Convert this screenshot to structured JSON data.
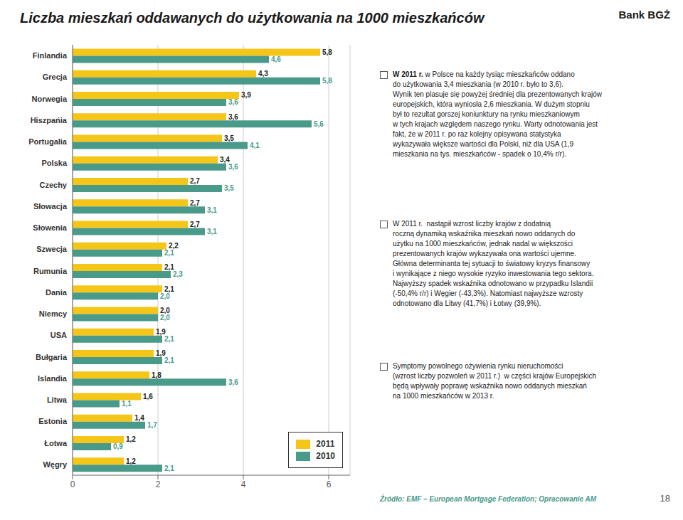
{
  "chart_data": {
    "type": "bar",
    "orientation": "horizontal",
    "title": "Liczba mieszkań oddawanych do użytkowania na 1000 mieszkańców",
    "categories": [
      "Finlandia",
      "Grecja",
      "Norwegia",
      "Hiszpańia",
      "Portugalia",
      "Polska",
      "Czechy",
      "Słowacja",
      "Słowenia",
      "Szwecja",
      "Rumunia",
      "Dania",
      "Niemcy",
      "USA",
      "Bułgaria",
      "Islandia",
      "Litwa",
      "Estonia",
      "Łotwa",
      "Węgry"
    ],
    "series": [
      {
        "name": "2011",
        "color": "#F5C518",
        "values": [
          5.8,
          4.3,
          3.9,
          3.6,
          3.5,
          3.4,
          2.7,
          2.7,
          2.7,
          2.2,
          2.1,
          2.1,
          2.0,
          1.9,
          1.9,
          1.8,
          1.6,
          1.4,
          1.2,
          1.2
        ],
        "value_labels": [
          "5,8",
          "4,3",
          "3,9",
          "3,6",
          "3,5",
          "3,4",
          "2,7",
          "2,7",
          "2,7",
          "2,2",
          "2,1",
          "2,1",
          "2,0",
          "1,9",
          "1,9",
          "1,8",
          "1,6",
          "1,4",
          "1,2",
          "1,2"
        ]
      },
      {
        "name": "2010",
        "color": "#4A9A8A",
        "values": [
          4.6,
          5.8,
          3.6,
          5.6,
          4.1,
          3.6,
          3.5,
          3.1,
          3.1,
          2.1,
          2.3,
          2.0,
          2.0,
          2.1,
          2.1,
          3.6,
          1.1,
          1.7,
          0.9,
          2.1
        ],
        "value_labels": [
          "4,6",
          "5,8",
          "3,6",
          "5,6",
          "4,1",
          "3,6",
          "3,5",
          "3,1",
          "3,1",
          "2,1",
          "2,3",
          "2,0",
          "2,0",
          "2,1",
          "2,1",
          "3,6",
          "1,1",
          "1,7",
          "0,9",
          "2,1"
        ]
      }
    ],
    "xlim": [
      0,
      6.5
    ],
    "xticks": [
      0,
      2,
      4,
      6
    ],
    "grid": true,
    "legend": "lower right",
    "data_labels": true,
    "annotations": [
      "W 2011 r.",
      " w Polsce na każdy tysiąc mieszkańców oddano\ndo użytkowania 3,4 mieszkania (w 2010 r. było to 3,6).\nWynik ten plasuje się powyżej średniej dla prezentowanych krajów\neuropejskich, która wyniosła 2,6 mieszkania. W dużym stopniu\nbył to rezultat gorszej koniunktury na rynku mieszkaniowym\nw tych krajach względem naszego rynku. Warty odnotowania jest\nfakt, że w 2011 r. po raz kolejny opisywana statystyka\nwykazywała większe wartości dla Polski, niż dla USA (1,9\nmieszkania na tys. mieszkańców - spadek o 10,4% r/r).",
      "W 2011 r.  nastąpił wzrost liczby krajów z dodatnią\nroczną dynamiką wskaźnika mieszkań nowo oddanych do\nużytku na 1000 mieszkańców, jednak nadal w większości\nprezentowanych krajów wykazywała ona wartości ujemne.\nGłówna determinanta tej sytuacji to światowy kryzys finansowy\ni wynikające z niego wysokie ryzyko inwestowania tego sektora.\nNajwyższy spadek wskaźnika odnotowano w przypadku Islandii\n(-50,4% r/r) i Węgier (-43,3%). Natomiast najwyższe wzrosty\nodnotowano dla Litwy (41,7%) i Łotwy (39,9%).",
      "Symptomy powolnego ożywienia rynku nieruchomości\n(wzrost liczby pozwoleń w 2011 r.)  w części krajów Europejskich\nbędą wpływały poprawę wskaźnika nowo oddanych mieszkań\nna 1000 mieszkańców w 2013 r.",
      "Źródło: EMF – European Mortgage Federation; Opracowanie AM",
      "18",
      "Bank BGŻ"
    ]
  }
}
